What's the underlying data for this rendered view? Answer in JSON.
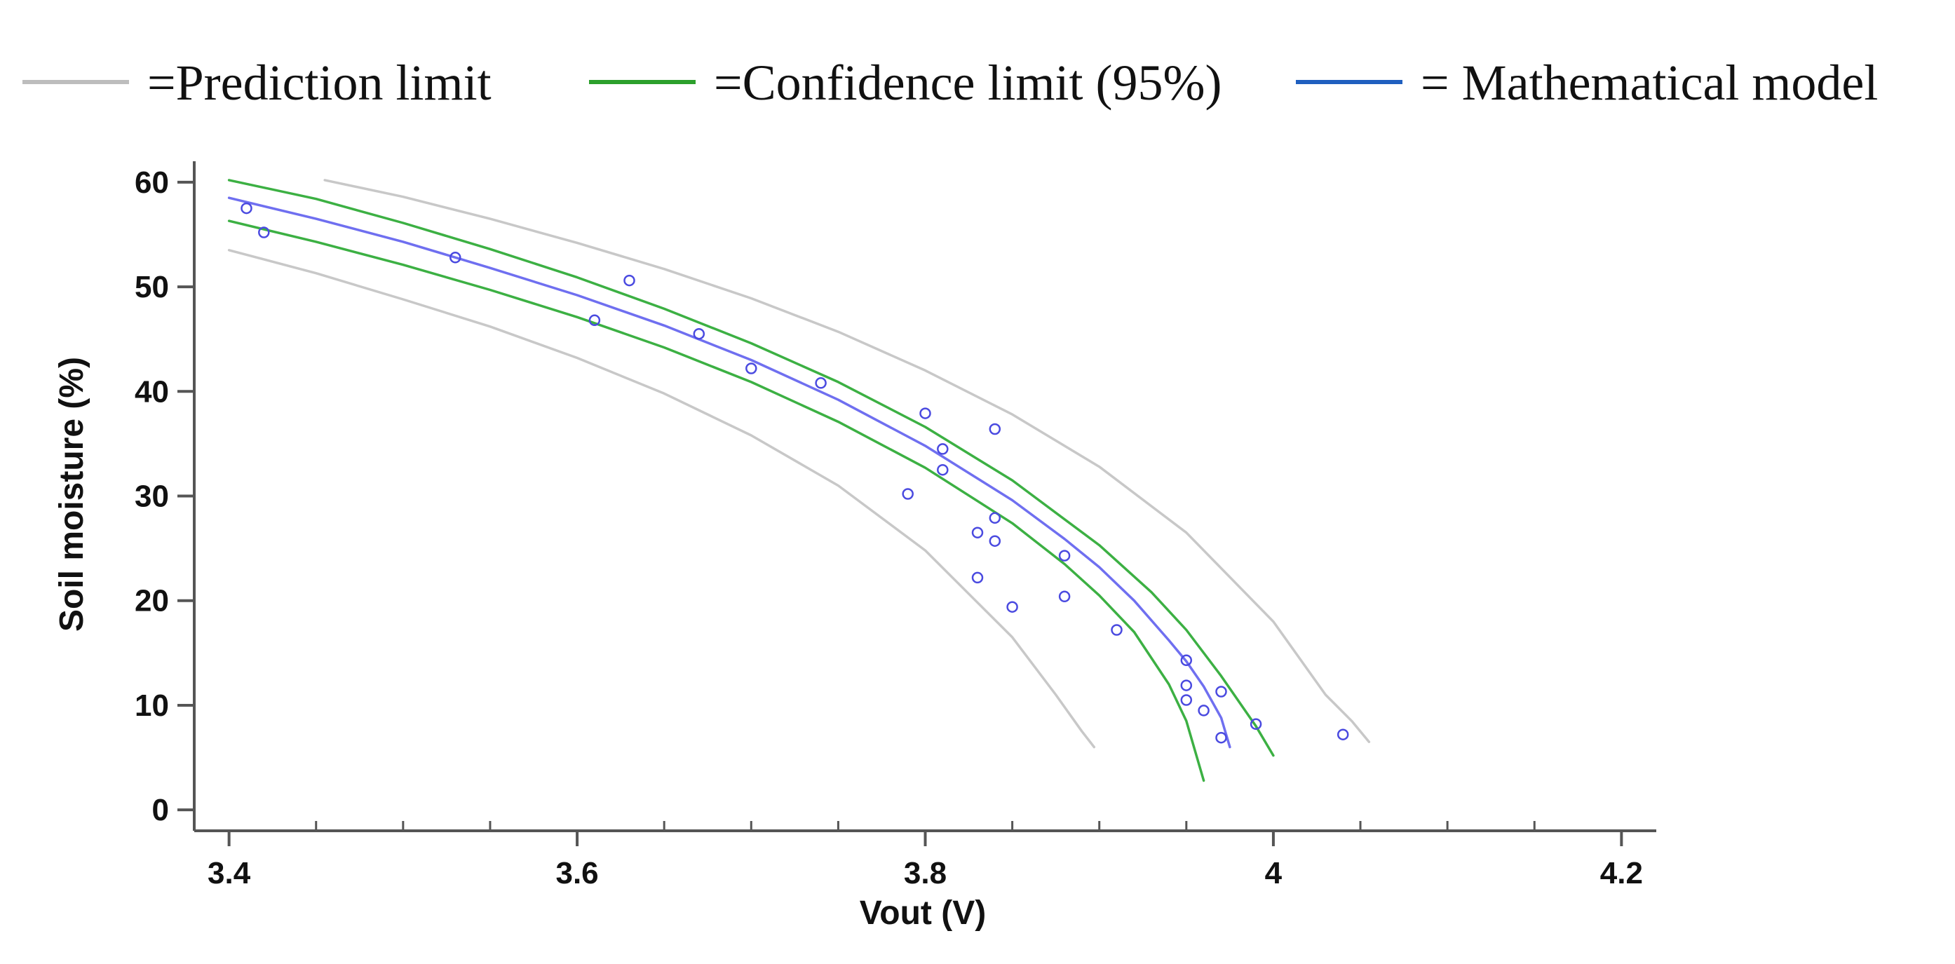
{
  "chart_data": {
    "type": "scatter",
    "xlabel": "Vout (V)",
    "ylabel": "Soil moisture (%)",
    "xlim": [
      3.38,
      4.22
    ],
    "ylim": [
      -2,
      62
    ],
    "x_ticks": [
      3.4,
      3.6,
      3.8,
      4,
      4.2
    ],
    "x_tick_labels": [
      "3.4",
      "3.6",
      "3.8",
      "4",
      "4.2"
    ],
    "x_minor_ticks": [
      3.45,
      3.5,
      3.55,
      3.65,
      3.7,
      3.75,
      3.85,
      3.9,
      3.95,
      4.05,
      4.1,
      4.15
    ],
    "y_ticks": [
      0,
      10,
      20,
      30,
      40,
      50,
      60
    ],
    "y_tick_labels": [
      "0",
      "10",
      "20",
      "30",
      "40",
      "50",
      "60"
    ],
    "grid": false,
    "legend": {
      "position": "top",
      "entries": [
        {
          "label": "=Prediction limit",
          "color": "#bdbdbd"
        },
        {
          "label": "=Confidence limit (95%)",
          "color": "#2ca02c"
        },
        {
          "label": "= Mathematical model",
          "color": "#1f5fbf"
        }
      ]
    },
    "series": [
      {
        "name": "Mathematical model",
        "kind": "line",
        "color": "#6f6ff0",
        "x": [
          3.4,
          3.45,
          3.5,
          3.55,
          3.6,
          3.65,
          3.7,
          3.75,
          3.8,
          3.85,
          3.88,
          3.9,
          3.92,
          3.94,
          3.95,
          3.96,
          3.97,
          3.975
        ],
        "y": [
          58.5,
          56.5,
          54.3,
          51.8,
          49.2,
          46.3,
          43.0,
          39.2,
          34.8,
          29.6,
          25.9,
          23.2,
          20.0,
          16.2,
          14.2,
          11.8,
          8.8,
          6.0
        ]
      },
      {
        "name": "Confidence limit upper",
        "kind": "line",
        "color": "#3cb043",
        "x": [
          3.4,
          3.45,
          3.5,
          3.55,
          3.6,
          3.65,
          3.7,
          3.75,
          3.8,
          3.85,
          3.9,
          3.93,
          3.95,
          3.97,
          3.99,
          4.0
        ],
        "y": [
          60.2,
          58.4,
          56.1,
          53.6,
          50.9,
          47.9,
          44.6,
          40.9,
          36.6,
          31.5,
          25.3,
          20.8,
          17.2,
          12.8,
          8.0,
          5.2
        ]
      },
      {
        "name": "Confidence limit lower",
        "kind": "line",
        "color": "#3cb043",
        "x": [
          3.4,
          3.45,
          3.5,
          3.55,
          3.6,
          3.65,
          3.7,
          3.75,
          3.8,
          3.85,
          3.88,
          3.9,
          3.92,
          3.94,
          3.95,
          3.96
        ],
        "y": [
          56.3,
          54.3,
          52.1,
          49.7,
          47.1,
          44.2,
          40.9,
          37.1,
          32.7,
          27.4,
          23.5,
          20.5,
          17.0,
          12.0,
          8.5,
          2.8
        ]
      },
      {
        "name": "Prediction limit upper",
        "kind": "line",
        "color": "#c8c8c8",
        "x": [
          3.455,
          3.5,
          3.55,
          3.6,
          3.65,
          3.7,
          3.75,
          3.8,
          3.85,
          3.9,
          3.95,
          4.0,
          4.03,
          4.045,
          4.055
        ],
        "y": [
          60.2,
          58.6,
          56.5,
          54.2,
          51.7,
          48.9,
          45.7,
          42.0,
          37.8,
          32.8,
          26.5,
          18.0,
          11.0,
          8.5,
          6.5
        ]
      },
      {
        "name": "Prediction limit lower",
        "kind": "line",
        "color": "#c8c8c8",
        "x": [
          3.4,
          3.45,
          3.5,
          3.55,
          3.6,
          3.65,
          3.7,
          3.75,
          3.8,
          3.85,
          3.875,
          3.89,
          3.897
        ],
        "y": [
          53.5,
          51.3,
          48.8,
          46.2,
          43.2,
          39.8,
          35.8,
          31.0,
          24.8,
          16.5,
          11.0,
          7.5,
          6.0
        ]
      },
      {
        "name": "Measured data",
        "kind": "scatter",
        "color": "#4a4ae0",
        "x": [
          3.41,
          3.42,
          3.53,
          3.61,
          3.63,
          3.67,
          3.7,
          3.74,
          3.79,
          3.8,
          3.81,
          3.81,
          3.83,
          3.83,
          3.84,
          3.84,
          3.84,
          3.85,
          3.88,
          3.88,
          3.91,
          3.95,
          3.95,
          3.95,
          3.96,
          3.97,
          3.97,
          3.99,
          4.04
        ],
        "y": [
          57.5,
          55.2,
          52.8,
          46.8,
          50.6,
          45.5,
          42.2,
          40.8,
          30.2,
          37.9,
          34.5,
          32.5,
          26.5,
          22.2,
          36.4,
          27.9,
          25.7,
          19.4,
          24.3,
          20.4,
          17.2,
          14.3,
          11.9,
          10.5,
          9.5,
          11.3,
          6.9,
          8.2,
          7.2
        ]
      }
    ]
  }
}
